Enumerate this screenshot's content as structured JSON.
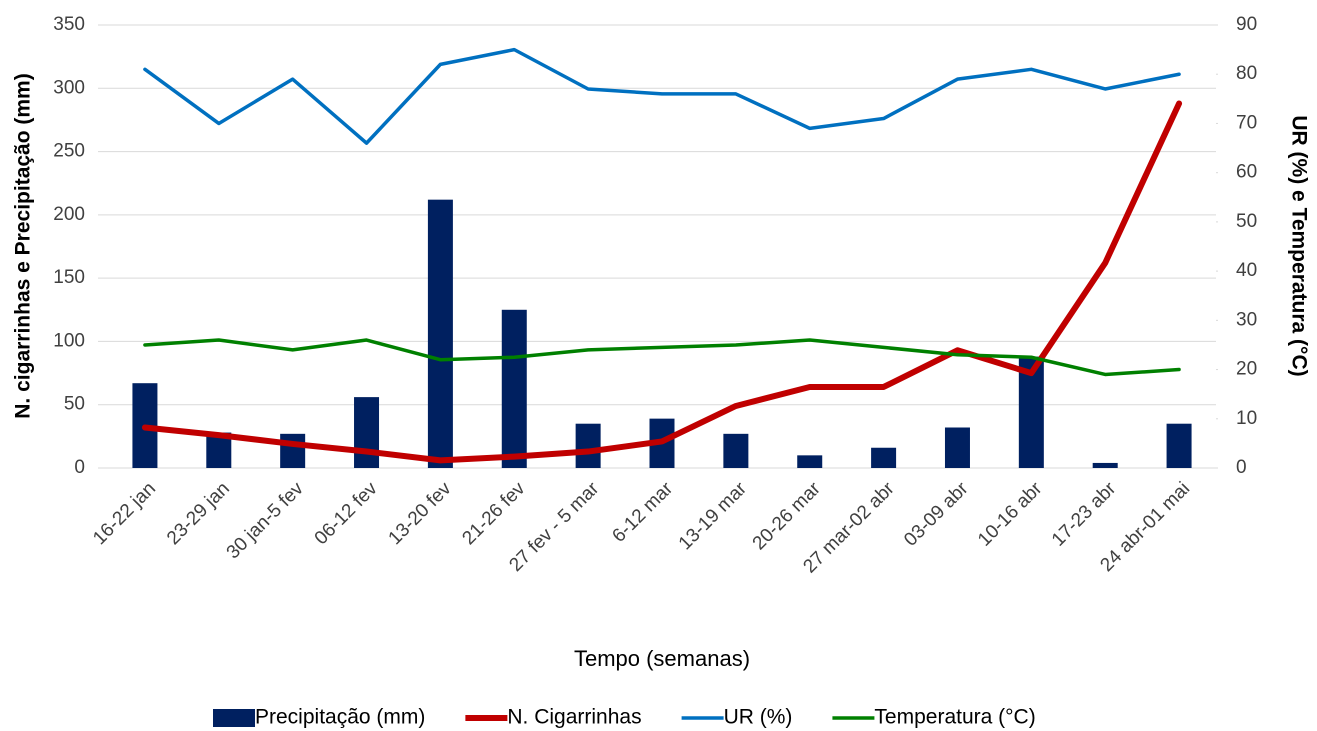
{
  "chart_data": {
    "type": "combo",
    "categories": [
      "16-22 jan",
      "23-29 jan",
      "30 jan-5 fev",
      "06-12 fev",
      "13-20 fev",
      "21-26 fev",
      "27 fev - 5 mar",
      "6-12 mar",
      "13-19 mar",
      "20-26 mar",
      "27 mar-02 abr",
      "03-09 abr",
      "10-16 abr",
      "17-23 abr",
      "24 abr-01 mai"
    ],
    "x_label": "Tempo (semanas)",
    "y_label": "N. cigarrinhas e Precipitação (mm)",
    "y2_label": "UR (%) e Temperatura (°C)",
    "ylim": [
      0,
      350
    ],
    "yticks": [
      0,
      50,
      100,
      150,
      200,
      250,
      300,
      350
    ],
    "y2lim": [
      0,
      90
    ],
    "y2ticks": [
      0,
      10,
      20,
      30,
      40,
      50,
      60,
      70,
      80,
      90
    ],
    "grid": true,
    "legend": "bottom",
    "series": [
      {
        "name": "Precipitação (mm)",
        "type": "bar",
        "color": "#002060",
        "values": [
          67,
          28,
          27,
          56,
          212,
          125,
          35,
          39,
          27,
          10,
          16,
          32,
          88,
          4,
          35
        ]
      },
      {
        "name": "N. Cigarrinhas",
        "type": "line",
        "color": "#c00000",
        "width": 6,
        "values": [
          32,
          26,
          19,
          13,
          6,
          9,
          13,
          21,
          49,
          64,
          64,
          93,
          75,
          162,
          288
        ]
      },
      {
        "name": "UR (%)",
        "type": "line",
        "axis": "y2",
        "color": "#0070c0",
        "width": 3.5,
        "values": [
          81,
          70,
          79,
          66,
          82,
          85,
          77,
          76,
          76,
          69,
          71,
          79,
          81,
          77,
          80
        ]
      },
      {
        "name": "Temperatura (°C)",
        "type": "line",
        "axis": "y2",
        "color": "#008000",
        "width": 3.5,
        "values": [
          25,
          26,
          24,
          26,
          22,
          22.5,
          24,
          24.5,
          25,
          26,
          24.5,
          23,
          22.5,
          19,
          20
        ]
      }
    ]
  }
}
